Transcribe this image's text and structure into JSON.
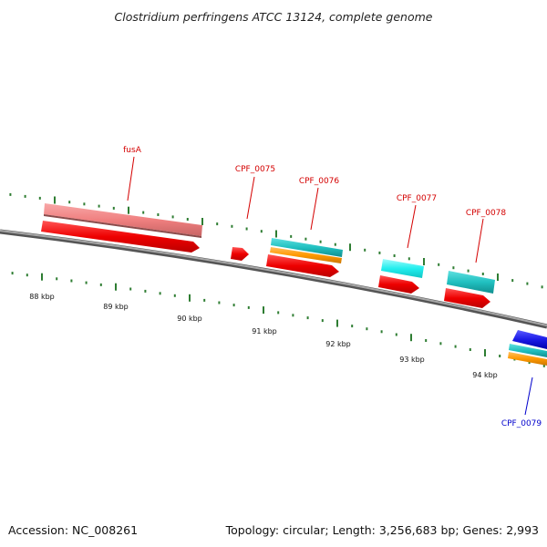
{
  "title": "Clostridium perfringens ATCC 13124, complete genome",
  "footer": {
    "accession": "Accession: NC_008261",
    "summary": "Topology: circular; Length: 3,256,683 bp; Genes: 2,993"
  },
  "tick_labels": [
    "88 kbp",
    "89 kbp",
    "90 kbp",
    "91 kbp",
    "92 kbp",
    "93 kbp",
    "94 kbp"
  ],
  "gene_labels": [
    {
      "text": "fusA",
      "color": "#d40000"
    },
    {
      "text": "CPF_0075",
      "color": "#d40000"
    },
    {
      "text": "CPF_0076",
      "color": "#d40000"
    },
    {
      "text": "CPF_0077",
      "color": "#d40000"
    },
    {
      "text": "CPF_0078",
      "color": "#d40000"
    },
    {
      "text": "CPF_0079",
      "color": "#0000cc"
    }
  ],
  "colors": {
    "backbone": "#808080",
    "tick_marks": "#2e7d32",
    "cds": "#ee1111",
    "rrna_light": "#f08080",
    "cog_teal": "#20c0c0",
    "cog_cyan": "#22eeee",
    "cog_orange": "#ff9900",
    "cds_blue": "#1a1ae6"
  }
}
